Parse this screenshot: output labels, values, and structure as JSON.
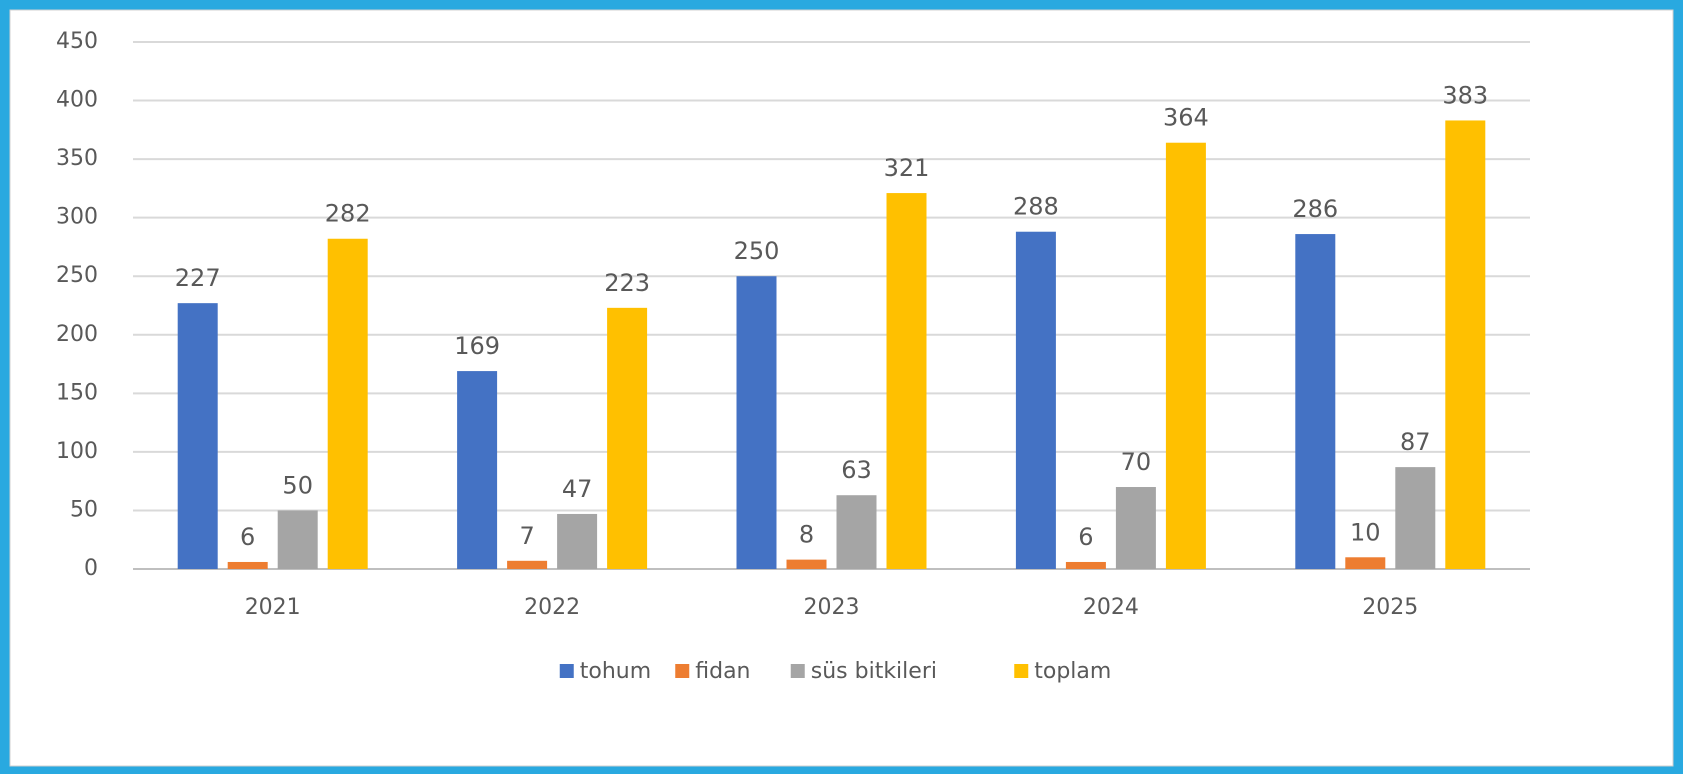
{
  "chart_data": {
    "type": "bar",
    "categories": [
      "2021",
      "2022",
      "2023",
      "2024",
      "2025"
    ],
    "series": [
      {
        "name": "tohum",
        "color": "#4472c4",
        "values": [
          227,
          169,
          250,
          288,
          286
        ]
      },
      {
        "name": "fidan",
        "color": "#ed7d31",
        "values": [
          6,
          7,
          8,
          6,
          10
        ]
      },
      {
        "name": "süs bitkileri",
        "color": "#a5a5a5",
        "values": [
          50,
          47,
          63,
          70,
          87
        ]
      },
      {
        "name": "toplam",
        "color": "#ffc000",
        "values": [
          282,
          223,
          321,
          364,
          383
        ]
      }
    ],
    "ylim": [
      0,
      450
    ],
    "yticks": [
      0,
      50,
      100,
      150,
      200,
      250,
      300,
      350,
      400,
      450
    ],
    "grid": true,
    "legend": "bottom"
  }
}
